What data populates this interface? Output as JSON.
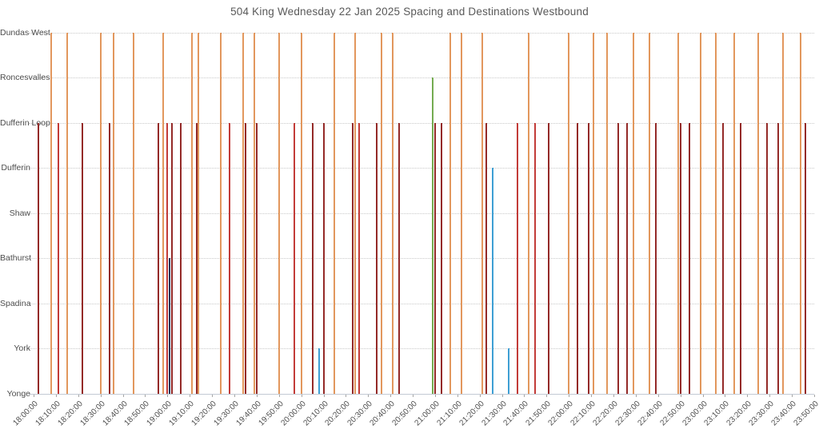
{
  "title": "504 King Wednesday 22 Jan 2025 Spacing and Destinations Westbound",
  "chart_data": {
    "type": "bar",
    "subtype": "vertical-event-lines",
    "title": "504 King Wednesday 22 Jan 2025 Spacing and Destinations Westbound",
    "xlabel": "",
    "ylabel": "",
    "grid": "dotted-horizontal",
    "legend": "none",
    "x_axis": {
      "start": "18:00:00",
      "end": "23:50:00",
      "tick_interval_minutes": 10,
      "tick_labels": [
        "18:00:00",
        "18:10:00",
        "18:20:00",
        "18:30:00",
        "18:40:00",
        "18:50:00",
        "19:00:00",
        "19:10:00",
        "19:20:00",
        "19:30:00",
        "19:40:00",
        "19:50:00",
        "20:00:00",
        "20:10:00",
        "20:20:00",
        "20:30:00",
        "20:40:00",
        "20:50:00",
        "21:00:00",
        "21:10:00",
        "21:20:00",
        "21:30:00",
        "21:40:00",
        "21:50:00",
        "22:00:00",
        "22:10:00",
        "22:20:00",
        "22:30:00",
        "22:40:00",
        "22:50:00",
        "23:00:00",
        "23:10:00",
        "23:20:00",
        "23:30:00",
        "23:40:00",
        "23:50:00"
      ]
    },
    "y_categories": [
      "Yonge",
      "York",
      "Spadina",
      "Bathurst",
      "Shaw",
      "Dufferin",
      "Dufferin Loop",
      "Roncesvalles",
      "Dundas West"
    ],
    "series_colors": {
      "orange": "#e2975d",
      "darkred": "#942a28",
      "red": "#c23b38",
      "navy": "#27395e",
      "blue": "#3e9fd4",
      "green": "#74ac51"
    },
    "departures": [
      {
        "time": "18:02",
        "destination": "Dufferin Loop",
        "color": "darkred"
      },
      {
        "time": "18:08",
        "destination": "Dundas West",
        "color": "orange"
      },
      {
        "time": "18:11",
        "destination": "Dufferin Loop",
        "color": "red"
      },
      {
        "time": "18:15",
        "destination": "Dundas West",
        "color": "orange"
      },
      {
        "time": "18:22",
        "destination": "Dufferin Loop",
        "color": "darkred"
      },
      {
        "time": "18:30",
        "destination": "Dundas West",
        "color": "orange"
      },
      {
        "time": "18:34",
        "destination": "Dufferin Loop",
        "color": "darkred"
      },
      {
        "time": "18:36",
        "destination": "Dundas West",
        "color": "orange"
      },
      {
        "time": "18:45",
        "destination": "Dundas West",
        "color": "orange"
      },
      {
        "time": "18:56",
        "destination": "Dufferin Loop",
        "color": "darkred"
      },
      {
        "time": "18:58",
        "destination": "Dundas West",
        "color": "orange"
      },
      {
        "time": "19:00",
        "destination": "Dufferin Loop",
        "color": "red"
      },
      {
        "time": "19:01",
        "destination": "Bathurst",
        "color": "navy"
      },
      {
        "time": "19:02",
        "destination": "Dufferin Loop",
        "color": "darkred"
      },
      {
        "time": "19:06",
        "destination": "Dufferin Loop",
        "color": "darkred"
      },
      {
        "time": "19:11",
        "destination": "Dundas West",
        "color": "orange"
      },
      {
        "time": "19:13",
        "destination": "Dufferin Loop",
        "color": "darkred"
      },
      {
        "time": "19:14",
        "destination": "Dundas West",
        "color": "orange"
      },
      {
        "time": "19:24",
        "destination": "Dundas West",
        "color": "orange"
      },
      {
        "time": "19:28",
        "destination": "Dufferin Loop",
        "color": "red"
      },
      {
        "time": "19:34",
        "destination": "Dundas West",
        "color": "orange"
      },
      {
        "time": "19:35",
        "destination": "Dufferin Loop",
        "color": "darkred"
      },
      {
        "time": "19:39",
        "destination": "Dundas West",
        "color": "orange"
      },
      {
        "time": "19:40",
        "destination": "Dufferin Loop",
        "color": "darkred"
      },
      {
        "time": "19:50",
        "destination": "Dundas West",
        "color": "orange"
      },
      {
        "time": "19:57",
        "destination": "Dufferin Loop",
        "color": "red"
      },
      {
        "time": "20:00",
        "destination": "Dundas West",
        "color": "orange"
      },
      {
        "time": "20:05",
        "destination": "Dufferin Loop",
        "color": "darkred"
      },
      {
        "time": "20:08",
        "destination": "York",
        "color": "blue"
      },
      {
        "time": "20:10",
        "destination": "Dufferin Loop",
        "color": "darkred"
      },
      {
        "time": "20:15",
        "destination": "Dundas West",
        "color": "orange"
      },
      {
        "time": "20:23",
        "destination": "Dufferin Loop",
        "color": "darkred"
      },
      {
        "time": "20:24",
        "destination": "Dundas West",
        "color": "orange"
      },
      {
        "time": "20:26",
        "destination": "Dufferin Loop",
        "color": "red"
      },
      {
        "time": "20:34",
        "destination": "Dufferin Loop",
        "color": "darkred"
      },
      {
        "time": "20:36",
        "destination": "Dundas West",
        "color": "orange"
      },
      {
        "time": "20:41",
        "destination": "Dundas West",
        "color": "orange"
      },
      {
        "time": "20:44",
        "destination": "Dufferin Loop",
        "color": "darkred"
      },
      {
        "time": "20:59",
        "destination": "Roncesvalles",
        "color": "green"
      },
      {
        "time": "21:00",
        "destination": "Dufferin Loop",
        "color": "darkred"
      },
      {
        "time": "21:03",
        "destination": "Dufferin Loop",
        "color": "darkred"
      },
      {
        "time": "21:07",
        "destination": "Dundas West",
        "color": "orange"
      },
      {
        "time": "21:12",
        "destination": "Dundas West",
        "color": "orange"
      },
      {
        "time": "21:21",
        "destination": "Dundas West",
        "color": "orange"
      },
      {
        "time": "21:23",
        "destination": "Dufferin Loop",
        "color": "darkred"
      },
      {
        "time": "21:26",
        "destination": "Dufferin",
        "color": "blue"
      },
      {
        "time": "21:33",
        "destination": "York",
        "color": "blue"
      },
      {
        "time": "21:37",
        "destination": "Dufferin Loop",
        "color": "red"
      },
      {
        "time": "21:42",
        "destination": "Dundas West",
        "color": "orange"
      },
      {
        "time": "21:45",
        "destination": "Dufferin Loop",
        "color": "red"
      },
      {
        "time": "21:51",
        "destination": "Dufferin Loop",
        "color": "darkred"
      },
      {
        "time": "22:00",
        "destination": "Dundas West",
        "color": "orange"
      },
      {
        "time": "22:04",
        "destination": "Dufferin Loop",
        "color": "darkred"
      },
      {
        "time": "22:09",
        "destination": "Dufferin Loop",
        "color": "darkred"
      },
      {
        "time": "22:11",
        "destination": "Dundas West",
        "color": "orange"
      },
      {
        "time": "22:17",
        "destination": "Dundas West",
        "color": "orange"
      },
      {
        "time": "22:22",
        "destination": "Dufferin Loop",
        "color": "darkred"
      },
      {
        "time": "22:26",
        "destination": "Dufferin Loop",
        "color": "darkred"
      },
      {
        "time": "22:29",
        "destination": "Dundas West",
        "color": "orange"
      },
      {
        "time": "22:36",
        "destination": "Dundas West",
        "color": "orange"
      },
      {
        "time": "22:39",
        "destination": "Dufferin Loop",
        "color": "darkred"
      },
      {
        "time": "22:49",
        "destination": "Dundas West",
        "color": "orange"
      },
      {
        "time": "22:50",
        "destination": "Dufferin Loop",
        "color": "darkred"
      },
      {
        "time": "22:54",
        "destination": "Dufferin Loop",
        "color": "darkred"
      },
      {
        "time": "22:59",
        "destination": "Dundas West",
        "color": "orange"
      },
      {
        "time": "23:06",
        "destination": "Dundas West",
        "color": "orange"
      },
      {
        "time": "23:09",
        "destination": "Dufferin Loop",
        "color": "darkred"
      },
      {
        "time": "23:14",
        "destination": "Dundas West",
        "color": "orange"
      },
      {
        "time": "23:17",
        "destination": "Dufferin Loop",
        "color": "darkred"
      },
      {
        "time": "23:25",
        "destination": "Dundas West",
        "color": "orange"
      },
      {
        "time": "23:29",
        "destination": "Dufferin Loop",
        "color": "darkred"
      },
      {
        "time": "23:34",
        "destination": "Dufferin Loop",
        "color": "darkred"
      },
      {
        "time": "23:36",
        "destination": "Dundas West",
        "color": "orange"
      },
      {
        "time": "23:44",
        "destination": "Dundas West",
        "color": "orange"
      },
      {
        "time": "23:46",
        "destination": "Dufferin Loop",
        "color": "darkred"
      }
    ]
  },
  "style_colors": {
    "title_text": "#595959",
    "axis_text": "#4d4d4d",
    "gridline": "#c9c9c9",
    "baseline": "#c3cad4"
  }
}
